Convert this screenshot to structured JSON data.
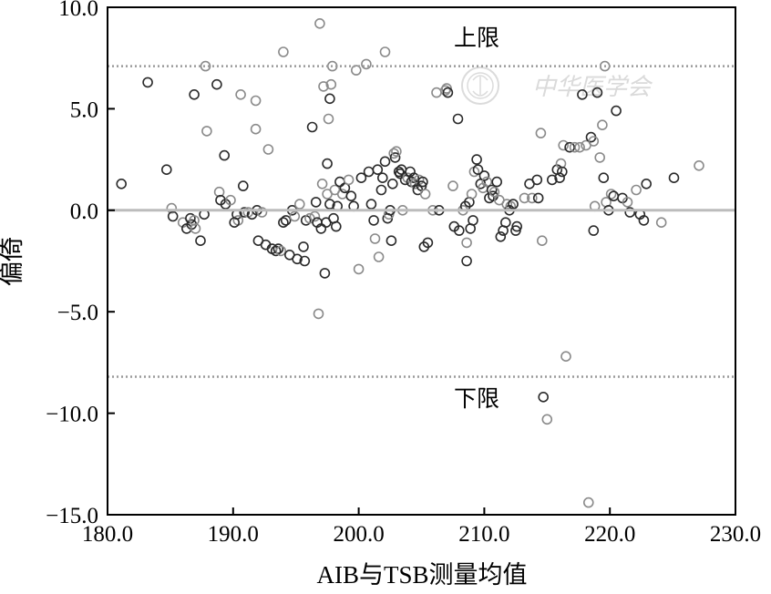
{
  "chart_data": {
    "type": "scatter",
    "title": "",
    "xlabel": "AIB与TSB测量均值",
    "ylabel": "偏倚",
    "xlim": [
      180,
      230
    ],
    "ylim": [
      -15,
      10
    ],
    "x_ticks": [
      180,
      190,
      200,
      210,
      220,
      230
    ],
    "x_tick_labels": [
      "180.0",
      "190.0",
      "200.0",
      "210.0",
      "220.0",
      "230.0"
    ],
    "y_ticks": [
      10,
      5,
      0,
      -5,
      -10,
      -15
    ],
    "y_tick_labels": [
      "10.0",
      "5.0",
      "0.0",
      "−5.0",
      "−10.0",
      "−15.0"
    ],
    "grid": false,
    "mean_bias": 0.0,
    "upper_limit": 7.1,
    "lower_limit": -8.2,
    "upper_label": "上限",
    "lower_label": "下限",
    "watermark": "中华医学会",
    "colors": {
      "marker_light": "#8a8a8a",
      "marker_dark": "#2a2a2a",
      "mean_line": "#bcbcbc",
      "limit_line": "#9a9a9a"
    },
    "points": [
      [
        181.1,
        1.3
      ],
      [
        183.2,
        6.3
      ],
      [
        184.7,
        2.0
      ],
      [
        185.1,
        0.1
      ],
      [
        185.2,
        -0.3
      ],
      [
        186.0,
        -0.6
      ],
      [
        186.3,
        -0.9
      ],
      [
        186.6,
        -0.4
      ],
      [
        186.7,
        -0.7
      ],
      [
        186.9,
        -0.5
      ],
      [
        186.9,
        5.7
      ],
      [
        187.0,
        -0.9
      ],
      [
        187.4,
        -1.5
      ],
      [
        187.7,
        -0.2
      ],
      [
        187.8,
        7.1
      ],
      [
        187.9,
        3.9
      ],
      [
        188.7,
        6.2
      ],
      [
        188.9,
        0.9
      ],
      [
        189.0,
        0.5
      ],
      [
        189.3,
        2.7
      ],
      [
        189.4,
        0.3
      ],
      [
        189.8,
        0.5
      ],
      [
        190.3,
        -0.2
      ],
      [
        190.4,
        -0.5
      ],
      [
        190.6,
        5.7
      ],
      [
        190.8,
        1.2
      ],
      [
        190.9,
        -0.1
      ],
      [
        191.2,
        -0.1
      ],
      [
        191.5,
        -0.2
      ],
      [
        191.8,
        5.4
      ],
      [
        191.8,
        4.0
      ],
      [
        191.9,
        0.0
      ],
      [
        192.0,
        -1.5
      ],
      [
        192.3,
        -0.1
      ],
      [
        192.6,
        -1.7
      ],
      [
        192.8,
        3.0
      ],
      [
        193.1,
        -1.9
      ],
      [
        193.4,
        -2.0
      ],
      [
        193.6,
        -1.9
      ],
      [
        193.8,
        -2.0
      ],
      [
        194.0,
        -0.6
      ],
      [
        194.0,
        7.8
      ],
      [
        194.2,
        -0.5
      ],
      [
        194.5,
        -2.2
      ],
      [
        194.7,
        0.0
      ],
      [
        194.9,
        -0.3
      ],
      [
        195.1,
        -2.4
      ],
      [
        195.3,
        0.3
      ],
      [
        195.6,
        -1.8
      ],
      [
        195.7,
        -2.5
      ],
      [
        195.8,
        -0.5
      ],
      [
        196.1,
        -0.4
      ],
      [
        196.3,
        4.1
      ],
      [
        196.5,
        -0.3
      ],
      [
        196.6,
        0.4
      ],
      [
        196.7,
        -0.6
      ],
      [
        196.8,
        -5.1
      ],
      [
        196.9,
        9.2
      ],
      [
        197.0,
        -0.9
      ],
      [
        197.1,
        1.3
      ],
      [
        197.2,
        6.1
      ],
      [
        197.3,
        -3.1
      ],
      [
        197.4,
        -0.6
      ],
      [
        197.5,
        0.8
      ],
      [
        197.5,
        2.3
      ],
      [
        197.6,
        4.5
      ],
      [
        197.7,
        0.3
      ],
      [
        197.7,
        5.5
      ],
      [
        197.8,
        6.2
      ],
      [
        197.9,
        7.1
      ],
      [
        198.0,
        -0.4
      ],
      [
        198.1,
        1.0
      ],
      [
        198.2,
        -0.8
      ],
      [
        198.3,
        0.2
      ],
      [
        198.5,
        1.4
      ],
      [
        198.7,
        0.8
      ],
      [
        198.9,
        1.1
      ],
      [
        199.2,
        1.5
      ],
      [
        199.4,
        0.7
      ],
      [
        199.6,
        0.2
      ],
      [
        199.8,
        6.9
      ],
      [
        200.0,
        -2.9
      ],
      [
        200.2,
        1.6
      ],
      [
        200.6,
        7.2
      ],
      [
        200.8,
        1.9
      ],
      [
        201.0,
        0.3
      ],
      [
        201.2,
        -0.5
      ],
      [
        201.3,
        -1.4
      ],
      [
        201.5,
        2.0
      ],
      [
        201.6,
        -2.3
      ],
      [
        201.8,
        1.0
      ],
      [
        201.9,
        1.6
      ],
      [
        202.1,
        2.4
      ],
      [
        202.1,
        7.8
      ],
      [
        202.3,
        -0.4
      ],
      [
        202.4,
        -0.2
      ],
      [
        202.5,
        0.0
      ],
      [
        202.6,
        -1.5
      ],
      [
        202.7,
        1.3
      ],
      [
        202.8,
        2.8
      ],
      [
        202.9,
        2.6
      ],
      [
        203.0,
        2.9
      ],
      [
        203.2,
        1.9
      ],
      [
        203.3,
        1.8
      ],
      [
        203.4,
        2.0
      ],
      [
        203.5,
        0.0
      ],
      [
        203.7,
        1.5
      ],
      [
        203.9,
        1.6
      ],
      [
        204.1,
        1.9
      ],
      [
        204.2,
        1.4
      ],
      [
        204.4,
        1.6
      ],
      [
        204.5,
        1.3
      ],
      [
        204.7,
        1.0
      ],
      [
        204.8,
        1.5
      ],
      [
        205.0,
        1.2
      ],
      [
        205.1,
        1.4
      ],
      [
        205.2,
        -1.8
      ],
      [
        205.3,
        0.8
      ],
      [
        205.5,
        -1.6
      ],
      [
        205.9,
        0.0
      ],
      [
        206.2,
        5.8
      ],
      [
        206.4,
        0.0
      ],
      [
        206.9,
        5.9
      ],
      [
        207.0,
        6.0
      ],
      [
        207.1,
        5.8
      ],
      [
        207.5,
        1.2
      ],
      [
        207.6,
        -0.8
      ],
      [
        207.9,
        4.5
      ],
      [
        208.0,
        -1.0
      ],
      [
        208.3,
        0.0
      ],
      [
        208.5,
        0.2
      ],
      [
        208.6,
        -1.6
      ],
      [
        208.6,
        -2.5
      ],
      [
        208.8,
        0.4
      ],
      [
        208.9,
        -0.9
      ],
      [
        209.0,
        0.8
      ],
      [
        209.1,
        -0.5
      ],
      [
        209.2,
        1.9
      ],
      [
        209.4,
        2.5
      ],
      [
        209.5,
        2.0
      ],
      [
        209.7,
        1.3
      ],
      [
        209.9,
        1.1
      ],
      [
        210.0,
        1.7
      ],
      [
        210.2,
        1.4
      ],
      [
        210.4,
        0.6
      ],
      [
        210.6,
        1.0
      ],
      [
        210.7,
        0.7
      ],
      [
        210.8,
        0.9
      ],
      [
        211.0,
        1.4
      ],
      [
        211.2,
        0.5
      ],
      [
        211.3,
        -1.3
      ],
      [
        211.5,
        -1.0
      ],
      [
        211.7,
        -0.6
      ],
      [
        211.8,
        0.3
      ],
      [
        212.0,
        0.0
      ],
      [
        212.1,
        0.2
      ],
      [
        212.3,
        0.3
      ],
      [
        212.5,
        -1.0
      ],
      [
        212.6,
        -0.8
      ],
      [
        213.2,
        0.6
      ],
      [
        213.6,
        1.3
      ],
      [
        213.8,
        0.6
      ],
      [
        214.2,
        1.5
      ],
      [
        214.3,
        0.6
      ],
      [
        214.5,
        3.8
      ],
      [
        214.6,
        -1.5
      ],
      [
        214.7,
        -9.2
      ],
      [
        215.0,
        -10.3
      ],
      [
        215.4,
        1.5
      ],
      [
        215.8,
        2.0
      ],
      [
        216.0,
        1.6
      ],
      [
        216.1,
        2.3
      ],
      [
        216.2,
        1.9
      ],
      [
        216.3,
        3.2
      ],
      [
        216.5,
        -7.2
      ],
      [
        216.8,
        3.1
      ],
      [
        217.2,
        3.1
      ],
      [
        217.6,
        3.1
      ],
      [
        217.8,
        5.7
      ],
      [
        218.1,
        3.2
      ],
      [
        218.3,
        -14.4
      ],
      [
        218.5,
        3.6
      ],
      [
        218.7,
        3.4
      ],
      [
        218.8,
        0.2
      ],
      [
        219.0,
        5.8
      ],
      [
        219.2,
        2.6
      ],
      [
        219.4,
        4.2
      ],
      [
        219.5,
        1.6
      ],
      [
        219.6,
        7.1
      ],
      [
        219.7,
        0.4
      ],
      [
        219.9,
        0.0
      ],
      [
        220.1,
        0.8
      ],
      [
        220.3,
        0.7
      ],
      [
        220.5,
        4.9
      ],
      [
        221.0,
        0.6
      ],
      [
        221.4,
        0.4
      ],
      [
        221.6,
        -0.1
      ],
      [
        222.1,
        1.0
      ],
      [
        222.4,
        -0.2
      ],
      [
        222.7,
        -0.5
      ],
      [
        222.9,
        1.3
      ],
      [
        224.1,
        -0.6
      ],
      [
        225.1,
        1.6
      ],
      [
        227.1,
        2.2
      ],
      [
        218.7,
        -1.0
      ],
      [
        190.1,
        -0.6
      ]
    ]
  }
}
